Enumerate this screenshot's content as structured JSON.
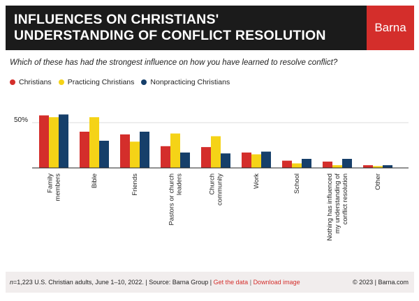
{
  "header": {
    "title_line1": "INFLUENCES ON CHRISTIANS'",
    "title_line2": "UNDERSTANDING OF CONFLICT RESOLUTION",
    "brand": "Barna"
  },
  "question": "Which of these has had the strongest influence on how you have learned to resolve conflict?",
  "colors": {
    "christians": "#d42e2b",
    "practicing": "#f5d317",
    "nonpracticing": "#163f6a"
  },
  "chart_data": {
    "type": "bar",
    "title": "Which of these has had the strongest influence on how you have learned to resolve conflict?",
    "xlabel": "",
    "ylabel": "",
    "ylim": [
      0,
      70
    ],
    "ytick_label": "50%",
    "ytick_value": 50,
    "legend_position": "top-left",
    "categories": [
      "Family members",
      "Bible",
      "Friends",
      "Pastors or church leaders",
      "Church community",
      "Work",
      "School",
      "Nothing has influenced my understanding of conflict resolution",
      "Other"
    ],
    "category_lines": [
      [
        "Family",
        "members"
      ],
      [
        "Bible"
      ],
      [
        "Friends"
      ],
      [
        "Pastors or church",
        "leaders"
      ],
      [
        "Church",
        "community"
      ],
      [
        "Work"
      ],
      [
        "School"
      ],
      [
        "Nothing has influenced",
        "my understanding of",
        "conflict resolution"
      ],
      [
        "Other"
      ]
    ],
    "series": [
      {
        "name": "Christians",
        "values": [
          58,
          40,
          37,
          24,
          23,
          17,
          8,
          7,
          3
        ]
      },
      {
        "name": "Practicing Christians",
        "values": [
          56,
          56,
          29,
          38,
          35,
          15,
          5,
          3,
          2
        ]
      },
      {
        "name": "Nonpracticing Christians",
        "values": [
          59,
          30,
          40,
          17,
          16,
          18,
          10,
          10,
          3
        ]
      }
    ]
  },
  "footer": {
    "n": "n",
    "sample": "=1,223 U.S. Christian adults, June 1–10, 2022. | Source: Barna Group |",
    "get_data": "Get the data",
    "sep": "|",
    "download": "Download image",
    "copyright": "© 2023 |  Barna.com"
  }
}
